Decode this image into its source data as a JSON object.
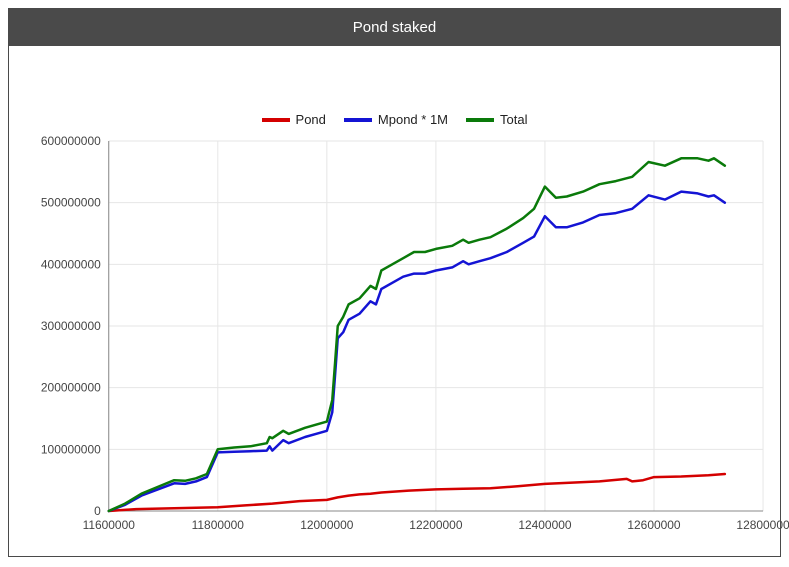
{
  "panel": {
    "title": "Pond staked",
    "header_bg": "#4a4a4a",
    "header_fg": "#ffffff",
    "border_color": "#4a4a4a"
  },
  "chart": {
    "type": "line",
    "background_color": "#ffffff",
    "grid_color": "#e6e6e6",
    "axis_color": "#888888",
    "tick_label_color": "#444444",
    "tick_fontsize": 12,
    "line_width": 2.5,
    "xlim": [
      11600000,
      12800000
    ],
    "ylim": [
      0,
      600000000
    ],
    "xticks": [
      11600000,
      11800000,
      12000000,
      12200000,
      12400000,
      12600000,
      12800000
    ],
    "yticks": [
      0,
      100000000,
      200000000,
      300000000,
      400000000,
      500000000,
      600000000
    ],
    "legend": {
      "items": [
        {
          "label": "Pond",
          "color": "#d40000"
        },
        {
          "label": "Mpond * 1M",
          "color": "#1414d4"
        },
        {
          "label": "Total",
          "color": "#0a7a0a"
        }
      ],
      "fontsize": 13,
      "swatch_width": 28,
      "swatch_height": 4
    },
    "series": [
      {
        "name": "Pond",
        "color": "#d40000",
        "points": [
          [
            11600000,
            0
          ],
          [
            11650000,
            3000000
          ],
          [
            11700000,
            4000000
          ],
          [
            11750000,
            5000000
          ],
          [
            11800000,
            6000000
          ],
          [
            11850000,
            9000000
          ],
          [
            11900000,
            12000000
          ],
          [
            11950000,
            16000000
          ],
          [
            12000000,
            18000000
          ],
          [
            12020000,
            22000000
          ],
          [
            12040000,
            25000000
          ],
          [
            12060000,
            27000000
          ],
          [
            12080000,
            28000000
          ],
          [
            12100000,
            30000000
          ],
          [
            12150000,
            33000000
          ],
          [
            12200000,
            35000000
          ],
          [
            12250000,
            36000000
          ],
          [
            12300000,
            37000000
          ],
          [
            12350000,
            40000000
          ],
          [
            12400000,
            44000000
          ],
          [
            12450000,
            46000000
          ],
          [
            12500000,
            48000000
          ],
          [
            12550000,
            52000000
          ],
          [
            12560000,
            48000000
          ],
          [
            12580000,
            50000000
          ],
          [
            12600000,
            55000000
          ],
          [
            12650000,
            56000000
          ],
          [
            12700000,
            58000000
          ],
          [
            12730000,
            60000000
          ]
        ]
      },
      {
        "name": "Mpond * 1M",
        "color": "#1414d4",
        "points": [
          [
            11600000,
            0
          ],
          [
            11630000,
            10000000
          ],
          [
            11660000,
            25000000
          ],
          [
            11690000,
            35000000
          ],
          [
            11720000,
            45000000
          ],
          [
            11740000,
            44000000
          ],
          [
            11760000,
            48000000
          ],
          [
            11780000,
            55000000
          ],
          [
            11800000,
            95000000
          ],
          [
            11830000,
            96000000
          ],
          [
            11860000,
            97000000
          ],
          [
            11890000,
            98000000
          ],
          [
            11895000,
            105000000
          ],
          [
            11900000,
            98000000
          ],
          [
            11920000,
            115000000
          ],
          [
            11930000,
            110000000
          ],
          [
            11960000,
            120000000
          ],
          [
            11980000,
            125000000
          ],
          [
            12000000,
            130000000
          ],
          [
            12010000,
            160000000
          ],
          [
            12015000,
            220000000
          ],
          [
            12020000,
            280000000
          ],
          [
            12030000,
            290000000
          ],
          [
            12040000,
            310000000
          ],
          [
            12060000,
            320000000
          ],
          [
            12080000,
            340000000
          ],
          [
            12090000,
            335000000
          ],
          [
            12100000,
            360000000
          ],
          [
            12120000,
            370000000
          ],
          [
            12140000,
            380000000
          ],
          [
            12160000,
            385000000
          ],
          [
            12180000,
            385000000
          ],
          [
            12200000,
            390000000
          ],
          [
            12230000,
            395000000
          ],
          [
            12250000,
            405000000
          ],
          [
            12260000,
            400000000
          ],
          [
            12280000,
            405000000
          ],
          [
            12300000,
            410000000
          ],
          [
            12330000,
            420000000
          ],
          [
            12360000,
            435000000
          ],
          [
            12380000,
            445000000
          ],
          [
            12400000,
            478000000
          ],
          [
            12420000,
            460000000
          ],
          [
            12440000,
            460000000
          ],
          [
            12470000,
            468000000
          ],
          [
            12500000,
            480000000
          ],
          [
            12530000,
            483000000
          ],
          [
            12560000,
            490000000
          ],
          [
            12590000,
            512000000
          ],
          [
            12620000,
            505000000
          ],
          [
            12650000,
            518000000
          ],
          [
            12680000,
            515000000
          ],
          [
            12700000,
            510000000
          ],
          [
            12710000,
            512000000
          ],
          [
            12730000,
            500000000
          ]
        ]
      },
      {
        "name": "Total",
        "color": "#0a7a0a",
        "points": [
          [
            11600000,
            0
          ],
          [
            11630000,
            12000000
          ],
          [
            11660000,
            28000000
          ],
          [
            11690000,
            39000000
          ],
          [
            11720000,
            50000000
          ],
          [
            11740000,
            49000000
          ],
          [
            11760000,
            53000000
          ],
          [
            11780000,
            60000000
          ],
          [
            11800000,
            100000000
          ],
          [
            11830000,
            103000000
          ],
          [
            11860000,
            105000000
          ],
          [
            11890000,
            110000000
          ],
          [
            11895000,
            120000000
          ],
          [
            11900000,
            118000000
          ],
          [
            11920000,
            130000000
          ],
          [
            11930000,
            125000000
          ],
          [
            11960000,
            135000000
          ],
          [
            11980000,
            140000000
          ],
          [
            12000000,
            145000000
          ],
          [
            12010000,
            180000000
          ],
          [
            12015000,
            240000000
          ],
          [
            12020000,
            300000000
          ],
          [
            12030000,
            315000000
          ],
          [
            12040000,
            335000000
          ],
          [
            12060000,
            345000000
          ],
          [
            12080000,
            365000000
          ],
          [
            12090000,
            360000000
          ],
          [
            12100000,
            390000000
          ],
          [
            12120000,
            400000000
          ],
          [
            12140000,
            410000000
          ],
          [
            12160000,
            420000000
          ],
          [
            12180000,
            420000000
          ],
          [
            12200000,
            425000000
          ],
          [
            12230000,
            430000000
          ],
          [
            12250000,
            440000000
          ],
          [
            12260000,
            435000000
          ],
          [
            12280000,
            440000000
          ],
          [
            12300000,
            444000000
          ],
          [
            12330000,
            458000000
          ],
          [
            12360000,
            475000000
          ],
          [
            12380000,
            490000000
          ],
          [
            12400000,
            526000000
          ],
          [
            12420000,
            508000000
          ],
          [
            12440000,
            510000000
          ],
          [
            12470000,
            518000000
          ],
          [
            12500000,
            530000000
          ],
          [
            12530000,
            535000000
          ],
          [
            12560000,
            542000000
          ],
          [
            12590000,
            566000000
          ],
          [
            12620000,
            560000000
          ],
          [
            12650000,
            572000000
          ],
          [
            12680000,
            572000000
          ],
          [
            12700000,
            568000000
          ],
          [
            12710000,
            572000000
          ],
          [
            12730000,
            560000000
          ]
        ]
      }
    ]
  }
}
